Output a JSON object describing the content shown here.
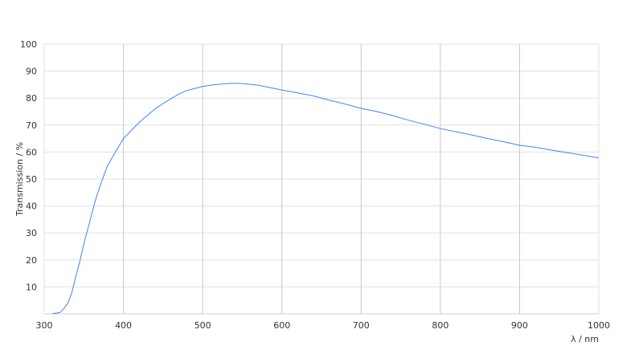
{
  "chart_data": {
    "type": "line",
    "title": "",
    "xlabel": "λ / nm",
    "ylabel": "Transmission / %",
    "xlim": [
      300,
      1000
    ],
    "ylim": [
      0,
      100
    ],
    "xticks": [
      300,
      400,
      500,
      600,
      700,
      800,
      900,
      1000
    ],
    "yticks": [
      10,
      20,
      30,
      40,
      50,
      60,
      70,
      80,
      90,
      100
    ],
    "grid": true,
    "line_color": "#4285f4",
    "series": [
      {
        "x": [
          310,
          320,
          325,
          330,
          335,
          340,
          345,
          350,
          355,
          360,
          365,
          370,
          375,
          380,
          390,
          400,
          410,
          420,
          430,
          440,
          450,
          460,
          470,
          480,
          490,
          500,
          510,
          520,
          530,
          540,
          550,
          560,
          570,
          580,
          590,
          600,
          620,
          640,
          660,
          680,
          700,
          720,
          740,
          760,
          780,
          800,
          820,
          840,
          860,
          880,
          900,
          920,
          940,
          960,
          980,
          1000
        ],
        "y": [
          0,
          0.5,
          2,
          4,
          8,
          14,
          19.5,
          26,
          31.5,
          37,
          42.5,
          47,
          51,
          55,
          60,
          65,
          68,
          71,
          73.5,
          76,
          78,
          79.8,
          81.5,
          82.8,
          83.6,
          84.3,
          84.8,
          85.1,
          85.4,
          85.5,
          85.4,
          85.1,
          84.8,
          84.2,
          83.6,
          83,
          81.9,
          80.8,
          79.2,
          77.8,
          76.2,
          75,
          73.5,
          71.8,
          70.3,
          68.7,
          67.5,
          66.3,
          65,
          63.8,
          62.5,
          61.8,
          60.7,
          59.8,
          58.8,
          57.8
        ]
      }
    ]
  }
}
